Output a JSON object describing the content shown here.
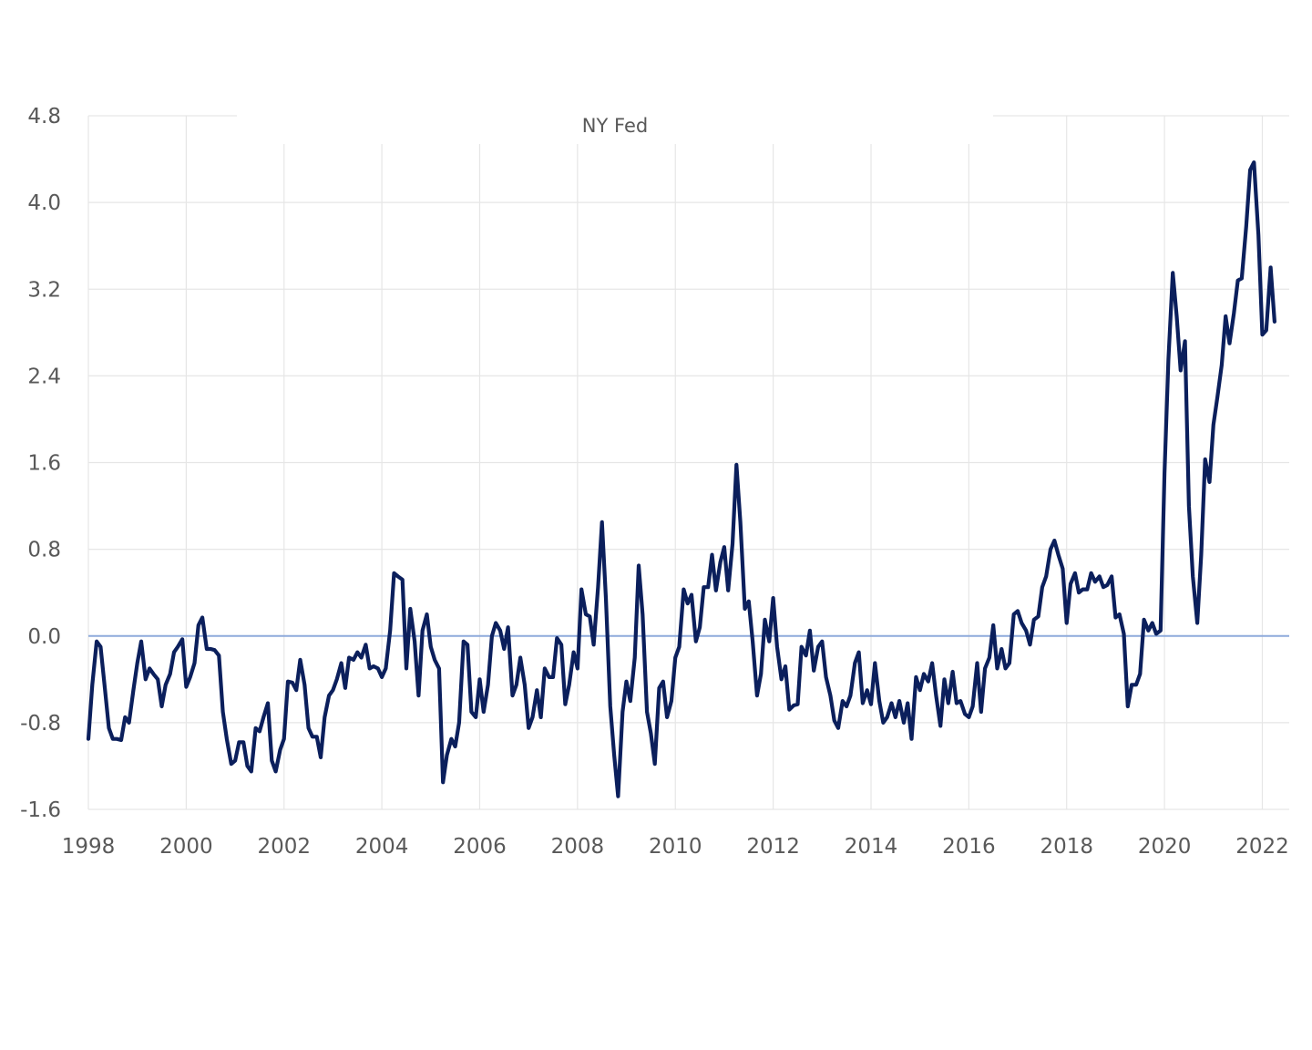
{
  "chart_data": {
    "type": "line",
    "title": "NY Fed",
    "xlabel": "",
    "ylabel": "",
    "xlim": [
      1998.0,
      2022.55
    ],
    "ylim": [
      -1.6,
      4.8
    ],
    "grid": true,
    "legend": "none",
    "x_ticks": [
      1998,
      2000,
      2002,
      2004,
      2006,
      2008,
      2010,
      2012,
      2014,
      2016,
      2018,
      2020,
      2022
    ],
    "x_tick_labels": [
      "1998",
      "2000",
      "2002",
      "2004",
      "2006",
      "2008",
      "2010",
      "2012",
      "2014",
      "2016",
      "2018",
      "2020",
      "2022"
    ],
    "y_ticks": [
      4.8,
      4.0,
      3.2,
      2.4,
      1.6,
      0.8,
      0.0,
      -0.8,
      -1.6
    ],
    "y_tick_labels": [
      "4.8",
      "4.0",
      "3.2",
      "2.4",
      "1.6",
      "0.8",
      "0.0",
      "-0.8",
      "-1.6"
    ],
    "zero_line": 0.0,
    "series_color": "#0b1f5c",
    "zero_line_color": "#8eaadb",
    "grid_color": "#e6e6e6",
    "series": [
      {
        "points": [
          [
            1998.0,
            -0.95
          ],
          [
            1998.08,
            -0.45
          ],
          [
            1998.17,
            -0.05
          ],
          [
            1998.25,
            -0.1
          ],
          [
            1998.33,
            -0.45
          ],
          [
            1998.42,
            -0.85
          ],
          [
            1998.5,
            -0.95
          ],
          [
            1998.58,
            -0.95
          ],
          [
            1998.67,
            -0.96
          ],
          [
            1998.75,
            -0.75
          ],
          [
            1998.83,
            -0.8
          ],
          [
            1998.92,
            -0.5
          ],
          [
            1999.0,
            -0.25
          ],
          [
            1999.08,
            -0.05
          ],
          [
            1999.17,
            -0.4
          ],
          [
            1999.25,
            -0.3
          ],
          [
            1999.33,
            -0.35
          ],
          [
            1999.42,
            -0.4
          ],
          [
            1999.5,
            -0.65
          ],
          [
            1999.58,
            -0.45
          ],
          [
            1999.67,
            -0.35
          ],
          [
            1999.75,
            -0.15
          ],
          [
            1999.83,
            -0.1
          ],
          [
            1999.92,
            -0.03
          ],
          [
            2000.0,
            -0.47
          ],
          [
            2000.08,
            -0.38
          ],
          [
            2000.17,
            -0.25
          ],
          [
            2000.25,
            0.1
          ],
          [
            2000.33,
            0.17
          ],
          [
            2000.42,
            -0.12
          ],
          [
            2000.5,
            -0.12
          ],
          [
            2000.58,
            -0.13
          ],
          [
            2000.67,
            -0.18
          ],
          [
            2000.75,
            -0.7
          ],
          [
            2000.83,
            -0.95
          ],
          [
            2000.92,
            -1.18
          ],
          [
            2001.0,
            -1.15
          ],
          [
            2001.08,
            -0.98
          ],
          [
            2001.17,
            -0.98
          ],
          [
            2001.25,
            -1.2
          ],
          [
            2001.33,
            -1.25
          ],
          [
            2001.42,
            -0.85
          ],
          [
            2001.5,
            -0.88
          ],
          [
            2001.58,
            -0.75
          ],
          [
            2001.67,
            -0.62
          ],
          [
            2001.75,
            -1.15
          ],
          [
            2001.83,
            -1.25
          ],
          [
            2001.92,
            -1.05
          ],
          [
            2002.0,
            -0.95
          ],
          [
            2002.08,
            -0.42
          ],
          [
            2002.17,
            -0.43
          ],
          [
            2002.25,
            -0.5
          ],
          [
            2002.33,
            -0.22
          ],
          [
            2002.42,
            -0.45
          ],
          [
            2002.5,
            -0.85
          ],
          [
            2002.58,
            -0.93
          ],
          [
            2002.67,
            -0.93
          ],
          [
            2002.75,
            -1.12
          ],
          [
            2002.83,
            -0.75
          ],
          [
            2002.92,
            -0.55
          ],
          [
            2003.0,
            -0.5
          ],
          [
            2003.08,
            -0.4
          ],
          [
            2003.17,
            -0.25
          ],
          [
            2003.25,
            -0.48
          ],
          [
            2003.33,
            -0.2
          ],
          [
            2003.42,
            -0.22
          ],
          [
            2003.5,
            -0.15
          ],
          [
            2003.58,
            -0.2
          ],
          [
            2003.67,
            -0.08
          ],
          [
            2003.75,
            -0.3
          ],
          [
            2003.83,
            -0.28
          ],
          [
            2003.92,
            -0.3
          ],
          [
            2004.0,
            -0.38
          ],
          [
            2004.08,
            -0.3
          ],
          [
            2004.17,
            0.05
          ],
          [
            2004.25,
            0.58
          ],
          [
            2004.33,
            0.55
          ],
          [
            2004.42,
            0.52
          ],
          [
            2004.5,
            -0.3
          ],
          [
            2004.58,
            0.25
          ],
          [
            2004.67,
            -0.05
          ],
          [
            2004.75,
            -0.55
          ],
          [
            2004.83,
            0.05
          ],
          [
            2004.92,
            0.2
          ],
          [
            2005.0,
            -0.1
          ],
          [
            2005.08,
            -0.22
          ],
          [
            2005.17,
            -0.3
          ],
          [
            2005.25,
            -1.35
          ],
          [
            2005.33,
            -1.1
          ],
          [
            2005.42,
            -0.95
          ],
          [
            2005.5,
            -1.02
          ],
          [
            2005.58,
            -0.8
          ],
          [
            2005.67,
            -0.05
          ],
          [
            2005.75,
            -0.08
          ],
          [
            2005.83,
            -0.7
          ],
          [
            2005.92,
            -0.75
          ],
          [
            2006.0,
            -0.4
          ],
          [
            2006.08,
            -0.7
          ],
          [
            2006.17,
            -0.45
          ],
          [
            2006.25,
            0.0
          ],
          [
            2006.33,
            0.12
          ],
          [
            2006.42,
            0.05
          ],
          [
            2006.5,
            -0.12
          ],
          [
            2006.58,
            0.08
          ],
          [
            2006.67,
            -0.55
          ],
          [
            2006.75,
            -0.45
          ],
          [
            2006.83,
            -0.2
          ],
          [
            2006.92,
            -0.45
          ],
          [
            2007.0,
            -0.85
          ],
          [
            2007.08,
            -0.75
          ],
          [
            2007.17,
            -0.5
          ],
          [
            2007.25,
            -0.75
          ],
          [
            2007.33,
            -0.3
          ],
          [
            2007.42,
            -0.38
          ],
          [
            2007.5,
            -0.38
          ],
          [
            2007.58,
            -0.02
          ],
          [
            2007.67,
            -0.08
          ],
          [
            2007.75,
            -0.63
          ],
          [
            2007.83,
            -0.45
          ],
          [
            2007.92,
            -0.15
          ],
          [
            2008.0,
            -0.3
          ],
          [
            2008.08,
            0.43
          ],
          [
            2008.17,
            0.2
          ],
          [
            2008.25,
            0.18
          ],
          [
            2008.33,
            -0.08
          ],
          [
            2008.42,
            0.45
          ],
          [
            2008.5,
            1.05
          ],
          [
            2008.58,
            0.35
          ],
          [
            2008.67,
            -0.65
          ],
          [
            2008.75,
            -1.1
          ],
          [
            2008.83,
            -1.48
          ],
          [
            2008.92,
            -0.7
          ],
          [
            2009.0,
            -0.42
          ],
          [
            2009.08,
            -0.6
          ],
          [
            2009.17,
            -0.2
          ],
          [
            2009.25,
            0.65
          ],
          [
            2009.33,
            0.2
          ],
          [
            2009.42,
            -0.7
          ],
          [
            2009.5,
            -0.9
          ],
          [
            2009.58,
            -1.18
          ],
          [
            2009.67,
            -0.48
          ],
          [
            2009.75,
            -0.42
          ],
          [
            2009.83,
            -0.75
          ],
          [
            2009.92,
            -0.6
          ],
          [
            2010.0,
            -0.2
          ],
          [
            2010.08,
            -0.1
          ],
          [
            2010.17,
            0.43
          ],
          [
            2010.25,
            0.3
          ],
          [
            2010.33,
            0.38
          ],
          [
            2010.42,
            -0.05
          ],
          [
            2010.5,
            0.08
          ],
          [
            2010.58,
            0.45
          ],
          [
            2010.67,
            0.45
          ],
          [
            2010.75,
            0.75
          ],
          [
            2010.83,
            0.42
          ],
          [
            2010.92,
            0.68
          ],
          [
            2011.0,
            0.82
          ],
          [
            2011.08,
            0.42
          ],
          [
            2011.17,
            0.85
          ],
          [
            2011.25,
            1.58
          ],
          [
            2011.33,
            1.05
          ],
          [
            2011.42,
            0.25
          ],
          [
            2011.5,
            0.32
          ],
          [
            2011.58,
            -0.05
          ],
          [
            2011.67,
            -0.55
          ],
          [
            2011.75,
            -0.35
          ],
          [
            2011.83,
            0.15
          ],
          [
            2011.92,
            -0.05
          ],
          [
            2012.0,
            0.35
          ],
          [
            2012.08,
            -0.1
          ],
          [
            2012.17,
            -0.4
          ],
          [
            2012.25,
            -0.28
          ],
          [
            2012.33,
            -0.68
          ],
          [
            2012.42,
            -0.64
          ],
          [
            2012.5,
            -0.63
          ],
          [
            2012.58,
            -0.1
          ],
          [
            2012.67,
            -0.18
          ],
          [
            2012.75,
            0.05
          ],
          [
            2012.83,
            -0.32
          ],
          [
            2012.92,
            -0.1
          ],
          [
            2013.0,
            -0.05
          ],
          [
            2013.08,
            -0.38
          ],
          [
            2013.17,
            -0.55
          ],
          [
            2013.25,
            -0.78
          ],
          [
            2013.33,
            -0.85
          ],
          [
            2013.42,
            -0.6
          ],
          [
            2013.5,
            -0.65
          ],
          [
            2013.58,
            -0.55
          ],
          [
            2013.67,
            -0.25
          ],
          [
            2013.75,
            -0.15
          ],
          [
            2013.83,
            -0.62
          ],
          [
            2013.92,
            -0.5
          ],
          [
            2014.0,
            -0.63
          ],
          [
            2014.08,
            -0.25
          ],
          [
            2014.17,
            -0.6
          ],
          [
            2014.25,
            -0.8
          ],
          [
            2014.33,
            -0.75
          ],
          [
            2014.42,
            -0.62
          ],
          [
            2014.5,
            -0.75
          ],
          [
            2014.58,
            -0.6
          ],
          [
            2014.67,
            -0.8
          ],
          [
            2014.75,
            -0.62
          ],
          [
            2014.83,
            -0.95
          ],
          [
            2014.92,
            -0.38
          ],
          [
            2015.0,
            -0.5
          ],
          [
            2015.08,
            -0.35
          ],
          [
            2015.17,
            -0.42
          ],
          [
            2015.25,
            -0.25
          ],
          [
            2015.33,
            -0.55
          ],
          [
            2015.42,
            -0.83
          ],
          [
            2015.5,
            -0.4
          ],
          [
            2015.58,
            -0.62
          ],
          [
            2015.67,
            -0.33
          ],
          [
            2015.75,
            -0.62
          ],
          [
            2015.83,
            -0.6
          ],
          [
            2015.92,
            -0.72
          ],
          [
            2016.0,
            -0.75
          ],
          [
            2016.08,
            -0.65
          ],
          [
            2016.17,
            -0.25
          ],
          [
            2016.25,
            -0.7
          ],
          [
            2016.33,
            -0.3
          ],
          [
            2016.42,
            -0.2
          ],
          [
            2016.5,
            0.1
          ],
          [
            2016.58,
            -0.3
          ],
          [
            2016.67,
            -0.12
          ],
          [
            2016.75,
            -0.3
          ],
          [
            2016.83,
            -0.25
          ],
          [
            2016.92,
            0.2
          ],
          [
            2017.0,
            0.23
          ],
          [
            2017.08,
            0.12
          ],
          [
            2017.17,
            0.05
          ],
          [
            2017.25,
            -0.08
          ],
          [
            2017.33,
            0.15
          ],
          [
            2017.42,
            0.18
          ],
          [
            2017.5,
            0.45
          ],
          [
            2017.58,
            0.55
          ],
          [
            2017.67,
            0.8
          ],
          [
            2017.75,
            0.88
          ],
          [
            2017.83,
            0.75
          ],
          [
            2017.92,
            0.62
          ],
          [
            2018.0,
            0.12
          ],
          [
            2018.08,
            0.48
          ],
          [
            2018.17,
            0.58
          ],
          [
            2018.25,
            0.4
          ],
          [
            2018.33,
            0.43
          ],
          [
            2018.42,
            0.43
          ],
          [
            2018.5,
            0.58
          ],
          [
            2018.58,
            0.5
          ],
          [
            2018.67,
            0.55
          ],
          [
            2018.75,
            0.45
          ],
          [
            2018.83,
            0.47
          ],
          [
            2018.92,
            0.55
          ],
          [
            2019.0,
            0.17
          ],
          [
            2019.08,
            0.2
          ],
          [
            2019.17,
            0.02
          ],
          [
            2019.25,
            -0.65
          ],
          [
            2019.33,
            -0.45
          ],
          [
            2019.42,
            -0.45
          ],
          [
            2019.5,
            -0.35
          ],
          [
            2019.58,
            0.15
          ],
          [
            2019.67,
            0.05
          ],
          [
            2019.75,
            0.12
          ],
          [
            2019.83,
            0.02
          ],
          [
            2019.92,
            0.05
          ],
          [
            2020.0,
            1.5
          ],
          [
            2020.08,
            2.55
          ],
          [
            2020.17,
            3.35
          ],
          [
            2020.25,
            2.95
          ],
          [
            2020.33,
            2.45
          ],
          [
            2020.42,
            2.72
          ],
          [
            2020.5,
            1.2
          ],
          [
            2020.58,
            0.55
          ],
          [
            2020.67,
            0.12
          ],
          [
            2020.75,
            0.75
          ],
          [
            2020.83,
            1.63
          ],
          [
            2020.92,
            1.42
          ],
          [
            2021.0,
            1.95
          ],
          [
            2021.08,
            2.2
          ],
          [
            2021.17,
            2.5
          ],
          [
            2021.25,
            2.95
          ],
          [
            2021.33,
            2.7
          ],
          [
            2021.42,
            2.98
          ],
          [
            2021.5,
            3.28
          ],
          [
            2021.58,
            3.3
          ],
          [
            2021.67,
            3.78
          ],
          [
            2021.75,
            4.3
          ],
          [
            2021.83,
            4.37
          ],
          [
            2021.92,
            3.7
          ],
          [
            2022.0,
            2.78
          ],
          [
            2022.08,
            2.82
          ],
          [
            2022.17,
            3.4
          ],
          [
            2022.25,
            2.9
          ]
        ]
      }
    ]
  }
}
